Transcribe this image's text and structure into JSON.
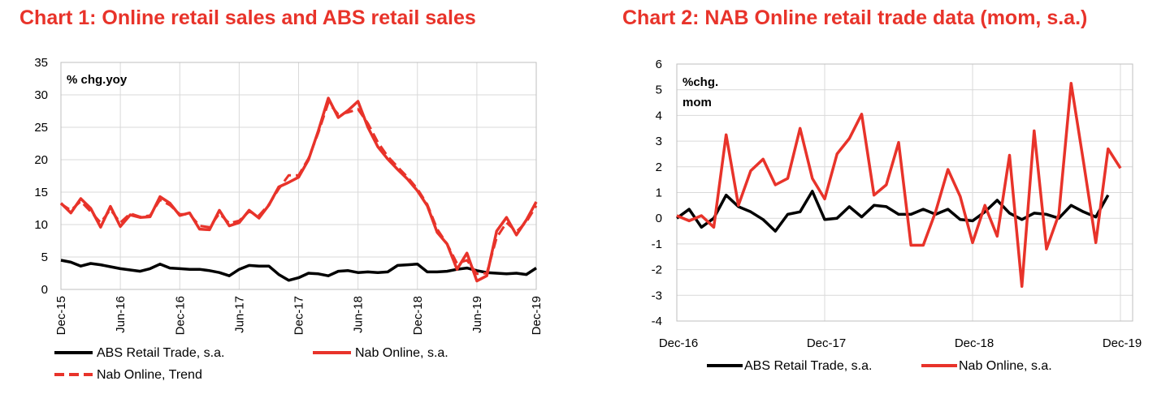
{
  "colors": {
    "title": "#e8332a",
    "abs": "#000000",
    "online": "#e8332a",
    "grid": "#d9d9d9"
  },
  "charts": [
    {
      "title": "Chart 1: Online retail sales and ABS retail sales",
      "chart_data": {
        "type": "line",
        "unit_label": "% chg.yoy",
        "x_ticks": [
          "Dec-15",
          "Jun-16",
          "Dec-16",
          "Jun-17",
          "Dec-17",
          "Jun-18",
          "Dec-18",
          "Jun-19",
          "Dec-19"
        ],
        "x_period": "monthly, Dec-15 to Dec-19 (49 points)",
        "ylim": [
          0,
          35
        ],
        "y_ticks": [
          0,
          5,
          10,
          15,
          20,
          25,
          30,
          35
        ],
        "grid": true,
        "legend_position": "bottom",
        "series": [
          {
            "name": "ABS Retail Trade, s.a.",
            "style": "solid",
            "color": "#000000",
            "values": [
              4.5,
              4.2,
              3.6,
              4.0,
              3.8,
              3.5,
              3.2,
              3.0,
              2.8,
              3.2,
              3.9,
              3.3,
              3.2,
              3.1,
              3.1,
              2.9,
              2.6,
              2.1,
              3.1,
              3.7,
              3.6,
              3.6,
              2.3,
              1.4,
              1.8,
              2.5,
              2.4,
              2.1,
              2.8,
              2.9,
              2.6,
              2.7,
              2.6,
              2.7,
              3.7,
              3.8,
              3.9,
              2.7,
              2.7,
              2.8,
              3.1,
              3.3,
              2.9,
              2.6,
              2.5,
              2.4,
              2.5,
              2.3,
              3.3
            ]
          },
          {
            "name": "Nab Online, s.a.",
            "style": "solid",
            "color": "#e8332a",
            "values": [
              13.3,
              11.8,
              14.0,
              12.5,
              9.6,
              12.8,
              9.7,
              11.5,
              11.1,
              11.2,
              14.3,
              13.3,
              11.4,
              11.8,
              9.3,
              9.2,
              12.2,
              9.8,
              10.3,
              12.2,
              11.0,
              13.0,
              15.8,
              16.5,
              17.3,
              20.0,
              24.5,
              29.5,
              26.5,
              27.6,
              29.0,
              25.0,
              22.0,
              20.1,
              18.5,
              17.0,
              15.2,
              12.9,
              8.8,
              7.0,
              3.1,
              5.6,
              1.3,
              2.1,
              9.0,
              11.1,
              8.4,
              10.7,
              13.5
            ]
          },
          {
            "name": "Nab Online, Trend",
            "style": "dashed",
            "color": "#e8332a",
            "values": [
              13.2,
              12.2,
              13.6,
              12.0,
              10.3,
              12.3,
              10.3,
              11.7,
              11.2,
              11.4,
              13.8,
              13.0,
              11.6,
              11.6,
              9.8,
              9.6,
              11.7,
              10.2,
              10.6,
              12.0,
              11.4,
              13.1,
              15.5,
              17.6,
              17.6,
              20.2,
              24.2,
              28.8,
              27.0,
              27.3,
              27.8,
              25.6,
              22.7,
              20.5,
              18.9,
              17.3,
              15.5,
              13.1,
              9.3,
              7.0,
              4.0,
              4.5,
              2.4,
              2.5,
              8.0,
              10.3,
              8.9,
              10.4,
              12.9
            ]
          }
        ]
      }
    },
    {
      "title": "Chart 2: NAB Online retail trade data (mom, s.a.)",
      "chart_data": {
        "type": "line",
        "unit_label": [
          "%chg.",
          "mom"
        ],
        "x_ticks": [
          "Dec-16",
          "Dec-17",
          "Dec-18",
          "Dec-19"
        ],
        "x_period": "monthly, Dec-16 to Dec-19 (37 points)",
        "ylim": [
          -4,
          6
        ],
        "y_ticks": [
          -4,
          -3,
          -2,
          -1,
          0,
          1,
          2,
          3,
          4,
          5,
          6
        ],
        "grid": true,
        "legend_position": "bottom",
        "series": [
          {
            "name": "ABS Retail Trade, s.a.",
            "style": "solid",
            "color": "#000000",
            "values": [
              0.0,
              0.35,
              -0.35,
              0.0,
              0.9,
              0.45,
              0.25,
              -0.05,
              -0.5,
              0.15,
              0.25,
              1.05,
              -0.05,
              0.0,
              0.45,
              0.05,
              0.5,
              0.45,
              0.15,
              0.15,
              0.35,
              0.15,
              0.35,
              -0.05,
              -0.1,
              0.25,
              0.7,
              0.2,
              -0.05,
              0.2,
              0.15,
              0.0,
              0.5,
              0.25,
              0.05,
              0.9
            ]
          },
          {
            "name": "Nab Online, s.a.",
            "style": "solid",
            "color": "#e8332a",
            "values": [
              0.1,
              -0.1,
              0.1,
              -0.35,
              3.25,
              0.5,
              1.85,
              2.3,
              1.3,
              1.55,
              3.5,
              1.55,
              0.75,
              2.5,
              3.1,
              4.05,
              0.9,
              1.3,
              2.95,
              -1.05,
              -1.05,
              0.25,
              1.9,
              0.85,
              -0.95,
              0.5,
              -0.7,
              2.45,
              -2.65,
              3.4,
              -1.2,
              0.15,
              5.25,
              2.2,
              -0.95,
              2.7,
              1.95
            ]
          }
        ]
      }
    }
  ]
}
